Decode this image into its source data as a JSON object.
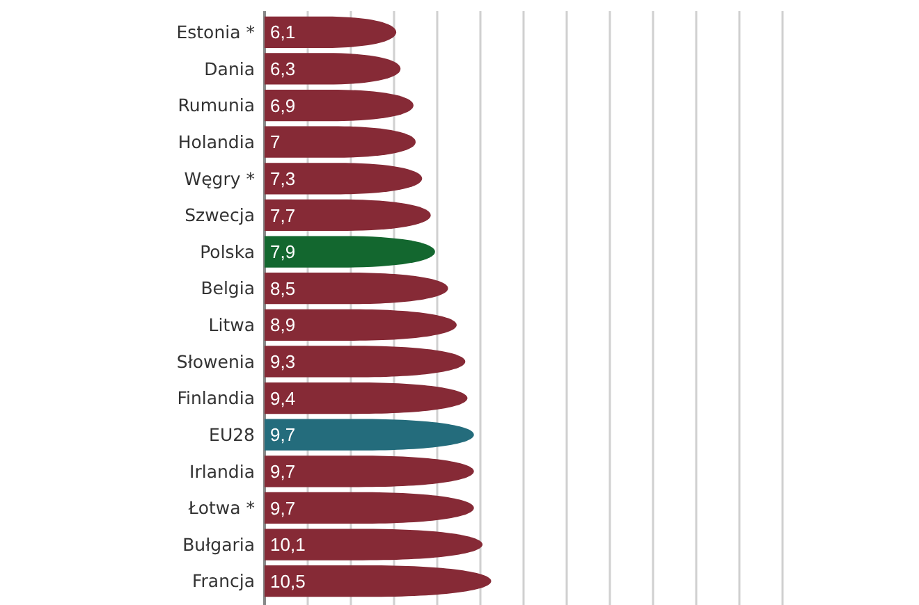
{
  "chart_data": {
    "type": "bar",
    "orientation": "horizontal",
    "categories": [
      "Estonia *",
      "Dania",
      "Rumunia",
      "Holandia",
      "Węgry *",
      "Szwecja",
      "Polska",
      "Belgia",
      "Litwa",
      "Słowenia",
      "Finlandia",
      "EU28",
      "Irlandia",
      "Łotwa *",
      "Bułgaria",
      "Francja"
    ],
    "values": [
      6.1,
      6.3,
      6.9,
      7,
      7.3,
      7.7,
      7.9,
      8.5,
      8.9,
      9.3,
      9.4,
      9.7,
      9.7,
      9.7,
      10.1,
      10.5
    ],
    "value_labels": [
      "6,1",
      "6,3",
      "6,9",
      "7",
      "7,3",
      "7,7",
      "7,9",
      "8,5",
      "8,9",
      "9,3",
      "9,4",
      "9,7",
      "9,7",
      "9,7",
      "10,1",
      "10,5"
    ],
    "colors": [
      "#862a36",
      "#862a36",
      "#862a36",
      "#862a36",
      "#862a36",
      "#862a36",
      "#13672f",
      "#862a36",
      "#862a36",
      "#862a36",
      "#862a36",
      "#246c7c",
      "#862a36",
      "#862a36",
      "#862a36",
      "#862a36"
    ],
    "xlim": [
      0,
      24
    ],
    "xticks": [
      {
        "value": 0,
        "label": null
      },
      {
        "value": 2,
        "label": null
      },
      {
        "value": 4,
        "label": null
      },
      {
        "value": 6,
        "label": null
      },
      {
        "value": 8,
        "label": null
      },
      {
        "value": 10,
        "label": null
      },
      {
        "value": 12,
        "label": null
      },
      {
        "value": 14,
        "label": null
      },
      {
        "value": 16,
        "label": null
      },
      {
        "value": 18,
        "label": null
      },
      {
        "value": 20,
        "label": null
      },
      {
        "value": 22,
        "label": null
      },
      {
        "value": 24,
        "label": null
      }
    ],
    "grid": "x",
    "tick_labels": "y"
  }
}
